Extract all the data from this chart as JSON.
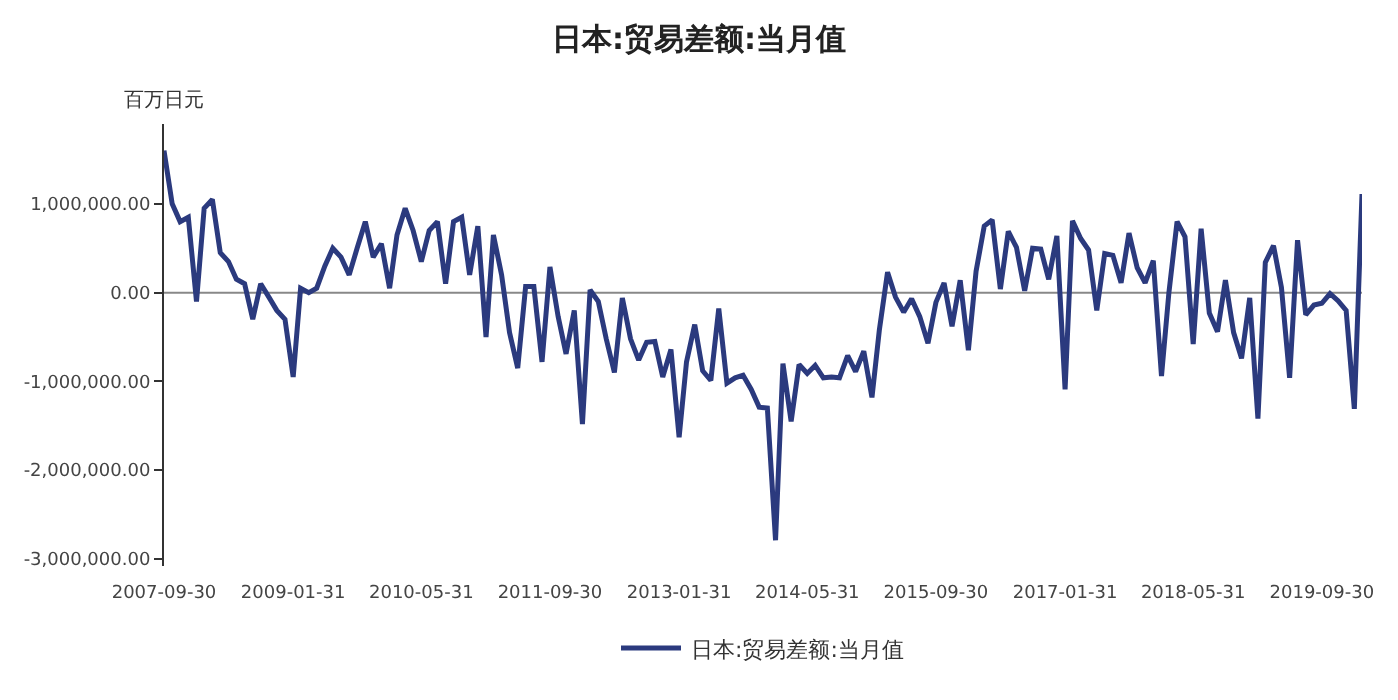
{
  "chart_data": {
    "type": "line",
    "title": "日本:贸易差额:当月值",
    "ylabel": "百万日元",
    "x": [
      "2007-09-30",
      "2007-10-31",
      "2007-11-30",
      "2007-12-31",
      "2008-01-31",
      "2008-02-29",
      "2008-03-31",
      "2008-04-30",
      "2008-05-31",
      "2008-06-30",
      "2008-07-31",
      "2008-08-31",
      "2008-09-30",
      "2008-10-31",
      "2008-11-30",
      "2008-12-31",
      "2009-01-31",
      "2009-02-28",
      "2009-03-31",
      "2009-04-30",
      "2009-05-31",
      "2009-06-30",
      "2009-07-31",
      "2009-08-31",
      "2009-09-30",
      "2009-10-31",
      "2009-11-30",
      "2009-12-31",
      "2010-01-31",
      "2010-02-28",
      "2010-03-31",
      "2010-04-30",
      "2010-05-31",
      "2010-06-30",
      "2010-07-31",
      "2010-08-31",
      "2010-09-30",
      "2010-10-31",
      "2010-11-30",
      "2010-12-31",
      "2011-01-31",
      "2011-02-28",
      "2011-03-31",
      "2011-04-30",
      "2011-05-31",
      "2011-06-30",
      "2011-07-31",
      "2011-08-31",
      "2011-09-30",
      "2011-10-31",
      "2011-11-30",
      "2011-12-31",
      "2012-01-31",
      "2012-02-29",
      "2012-03-31",
      "2012-04-30",
      "2012-05-31",
      "2012-06-30",
      "2012-07-31",
      "2012-08-31",
      "2012-09-30",
      "2012-10-31",
      "2012-11-30",
      "2012-12-31",
      "2013-01-31",
      "2013-02-28",
      "2013-03-31",
      "2013-04-30",
      "2013-05-31",
      "2013-06-30",
      "2013-07-31",
      "2013-08-31",
      "2013-09-30",
      "2013-10-31",
      "2013-11-30",
      "2013-12-31",
      "2014-01-31",
      "2014-02-28",
      "2014-03-31",
      "2014-04-30",
      "2014-05-31",
      "2014-06-30",
      "2014-07-31",
      "2014-08-31",
      "2014-09-30",
      "2014-10-31",
      "2014-11-30",
      "2014-12-31",
      "2015-01-31",
      "2015-02-28",
      "2015-03-31",
      "2015-04-30",
      "2015-05-31",
      "2015-06-30",
      "2015-07-31",
      "2015-08-31",
      "2015-09-30",
      "2015-10-31",
      "2015-11-30",
      "2015-12-31",
      "2016-01-31",
      "2016-02-29",
      "2016-03-31",
      "2016-04-30",
      "2016-05-31",
      "2016-06-30",
      "2016-07-31",
      "2016-08-31",
      "2016-09-30",
      "2016-10-31",
      "2016-11-30",
      "2016-12-31",
      "2017-01-31",
      "2017-02-28",
      "2017-03-31",
      "2017-04-30",
      "2017-05-31",
      "2017-06-30",
      "2017-07-31",
      "2017-08-31",
      "2017-09-30",
      "2017-10-31",
      "2017-11-30",
      "2017-12-31",
      "2018-01-31",
      "2018-02-28",
      "2018-03-31",
      "2018-04-30",
      "2018-05-31",
      "2018-06-30",
      "2018-07-31",
      "2018-08-31",
      "2018-09-30",
      "2018-10-31",
      "2018-11-30",
      "2018-12-31",
      "2019-01-31",
      "2019-02-28",
      "2019-03-31",
      "2019-04-30",
      "2019-05-31",
      "2019-06-30",
      "2019-07-31",
      "2019-08-31",
      "2019-09-30",
      "2019-10-31",
      "2019-11-30",
      "2019-12-31",
      "2020-01-31",
      "2020-02-29"
    ],
    "series": [
      {
        "name": "日本:贸易差额:当月值",
        "color": "#2b3a7e",
        "values": [
          1600000,
          1000000,
          800000,
          850000,
          -100000,
          950000,
          1050000,
          450000,
          350000,
          150000,
          100000,
          -300000,
          100000,
          -50000,
          -200000,
          -300000,
          -950000,
          50000,
          0,
          50000,
          300000,
          500000,
          400000,
          200000,
          500000,
          800000,
          400000,
          550000,
          50000,
          650000,
          950000,
          700000,
          350000,
          700000,
          800000,
          100000,
          800000,
          850000,
          200000,
          750000,
          -500000,
          650000,
          200000,
          -450000,
          -850000,
          70000,
          70000,
          -780000,
          290000,
          -270000,
          -690000,
          -200000,
          -1480000,
          30000,
          -100000,
          -520000,
          -900000,
          -60000,
          -520000,
          -760000,
          -560000,
          -550000,
          -950000,
          -640000,
          -1630000,
          -780000,
          -360000,
          -880000,
          -990000,
          -180000,
          -1020000,
          -960000,
          -930000,
          -1090000,
          -1290000,
          -1300000,
          -2790000,
          -800000,
          -1450000,
          -810000,
          -910000,
          -820000,
          -960000,
          -950000,
          -960000,
          -710000,
          -890000,
          -660000,
          -1180000,
          -420000,
          230000,
          -50000,
          -220000,
          -70000,
          -270000,
          -570000,
          -110000,
          110000,
          -380000,
          140000,
          -650000,
          240000,
          750000,
          820000,
          40000,
          690000,
          510000,
          20000,
          500000,
          490000,
          150000,
          640000,
          -1090000,
          810000,
          610000,
          480000,
          -200000,
          440000,
          420000,
          110000,
          670000,
          280000,
          110000,
          360000,
          -940000,
          0,
          800000,
          630000,
          -580000,
          720000,
          -230000,
          -440000,
          140000,
          -450000,
          -740000,
          -60000,
          -1420000,
          340000,
          530000,
          60000,
          -960000,
          590000,
          -250000,
          -140000,
          -120000,
          -10000,
          -90000,
          -200000,
          -1310000,
          1110000
        ]
      }
    ],
    "xlim": [
      "2007-09-30",
      "2020-02-29"
    ],
    "xticks": [
      {
        "value": "2007-09-30",
        "label": "2007-09-30"
      },
      {
        "value": "2009-01-31",
        "label": "2009-01-31"
      },
      {
        "value": "2010-05-31",
        "label": "2010-05-31"
      },
      {
        "value": "2011-09-30",
        "label": "2011-09-30"
      },
      {
        "value": "2013-01-31",
        "label": "2013-01-31"
      },
      {
        "value": "2014-05-31",
        "label": "2014-05-31"
      },
      {
        "value": "2015-09-30",
        "label": "2015-09-30"
      },
      {
        "value": "2017-01-31",
        "label": "2017-01-31"
      },
      {
        "value": "2018-05-31",
        "label": "2018-05-31"
      },
      {
        "value": "2019-09-30",
        "label": "2019-09-30"
      }
    ],
    "ylim": [
      -3080000,
      1900000
    ],
    "ref_lines": [
      {
        "axis": "y",
        "value": 0,
        "color": "#888888"
      }
    ],
    "yticks": [
      {
        "value": -3000000,
        "label": "-3,000,000.00"
      },
      {
        "value": -2000000,
        "label": "-2,000,000.00"
      },
      {
        "value": -1000000,
        "label": "-1,000,000.00"
      },
      {
        "value": 0,
        "label": "0.00"
      },
      {
        "value": 1000000,
        "label": "1,000,000.00"
      }
    ],
    "legend": "bottom",
    "marker": "none",
    "line_style": "solid"
  }
}
